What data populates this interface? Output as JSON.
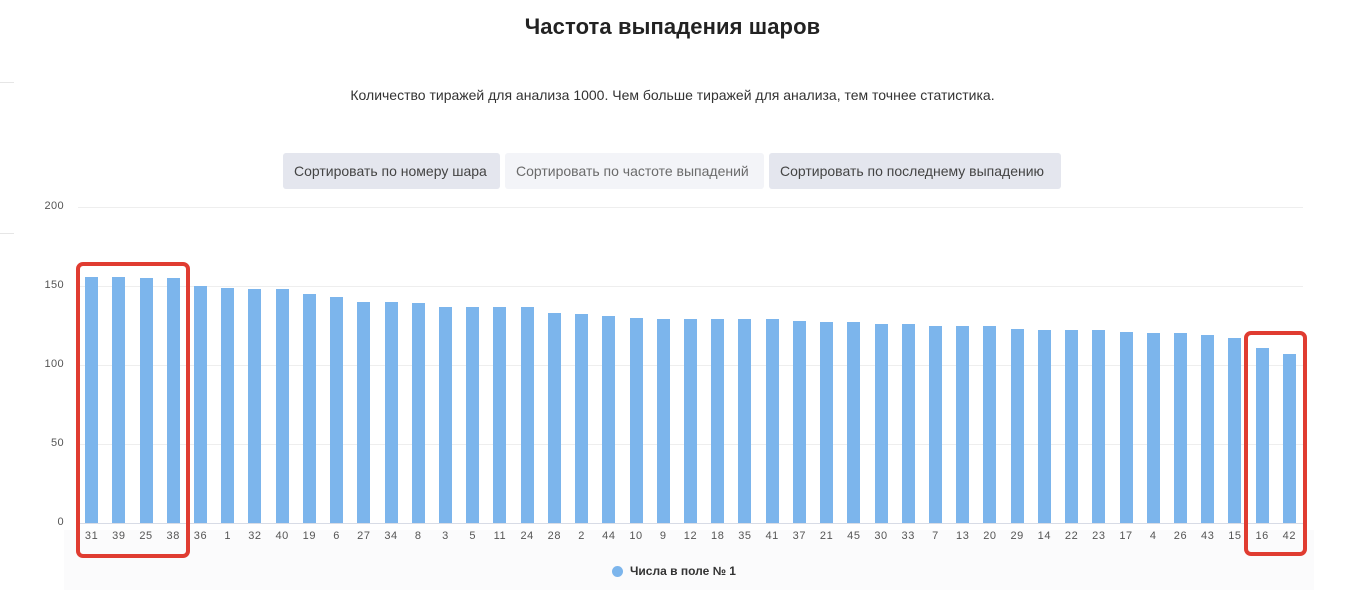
{
  "header": {
    "title": "Частота выпадения шаров",
    "subtitle": "Количество тиражей для анализа 1000. Чем больше тиражей для анализа, тем точнее статистика."
  },
  "sort_buttons": [
    {
      "label": "Сортировать по номеру шара",
      "active": false
    },
    {
      "label": "Сортировать по частоте выпадений",
      "active": true
    },
    {
      "label": "Сортировать по последнему выпадению",
      "active": false
    }
  ],
  "colors": {
    "bar": "#7cb5ec",
    "highlight": "#e03c31",
    "button": "#e4e6ee",
    "button_active": "#f3f4f8"
  },
  "legend": {
    "label": "Числа в поле № 1",
    "icon": "circle-marker-icon"
  },
  "highlights": [
    {
      "label": "most-frequent",
      "balls": [
        "31",
        "39",
        "25",
        "38"
      ]
    },
    {
      "label": "least-frequent",
      "balls": [
        "16",
        "42"
      ]
    }
  ],
  "chart_data": {
    "type": "bar",
    "title": "Частота выпадения шаров",
    "subtitle": "Количество тиражей для анализа 1000. Чем больше тиражей для анализа, тем точнее статистика.",
    "xlabel": "",
    "ylabel": "",
    "ylim": [
      0,
      200
    ],
    "yticks": [
      0,
      50,
      100,
      150,
      200
    ],
    "grid": true,
    "legend_position": "bottom",
    "categories": [
      "31",
      "39",
      "25",
      "38",
      "36",
      "1",
      "32",
      "40",
      "19",
      "6",
      "27",
      "34",
      "8",
      "3",
      "5",
      "11",
      "24",
      "28",
      "2",
      "44",
      "10",
      "9",
      "12",
      "18",
      "35",
      "41",
      "37",
      "21",
      "45",
      "30",
      "33",
      "7",
      "13",
      "20",
      "29",
      "14",
      "22",
      "23",
      "17",
      "4",
      "26",
      "43",
      "15",
      "16",
      "42"
    ],
    "series": [
      {
        "name": "Числа в поле № 1",
        "values": [
          156,
          156,
          155,
          155,
          150,
          149,
          148,
          148,
          145,
          143,
          140,
          140,
          139,
          137,
          137,
          137,
          137,
          133,
          132,
          131,
          130,
          129,
          129,
          129,
          129,
          129,
          128,
          127,
          127,
          126,
          126,
          125,
          125,
          125,
          123,
          122,
          122,
          122,
          121,
          120,
          120,
          119,
          117,
          111,
          107
        ]
      }
    ]
  }
}
